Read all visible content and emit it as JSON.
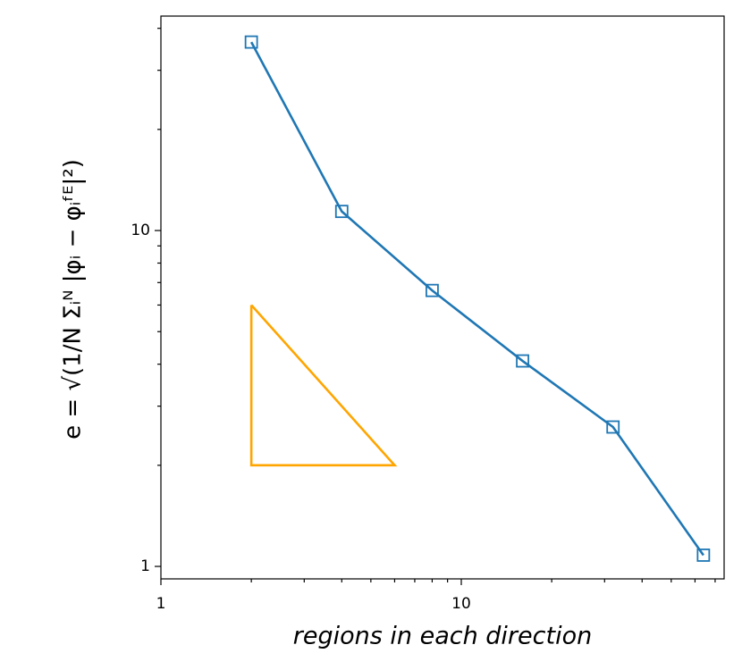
{
  "chart_data": {
    "type": "line",
    "log_x": true,
    "log_y": true,
    "xlabel": "regions in each direction",
    "ylabel": "e = √(1/N Σᵢᴺ |φᵢ − φᵢᶠᴱ|²)",
    "xlim": [
      1,
      75
    ],
    "ylim": [
      0.918,
      43.5
    ],
    "xticks": [
      1,
      10
    ],
    "yticks": [
      1,
      10
    ],
    "xminorticks": [
      2,
      3,
      4,
      5,
      6,
      7,
      8,
      9,
      20,
      30,
      40,
      50,
      60,
      70
    ],
    "yminorticks": [
      2,
      3,
      4,
      5,
      6,
      7,
      8,
      9,
      20,
      30,
      40
    ],
    "series": [
      {
        "color": "#1f77b4",
        "marker": "square",
        "x": [
          2,
          4,
          8,
          16,
          32,
          64
        ],
        "values": [
          36.4,
          11.4,
          6.63,
          4.09,
          2.6,
          1.08
        ]
      },
      {
        "color": "#ffa500",
        "marker": "none",
        "x": [
          2,
          2,
          6,
          2
        ],
        "values": [
          6,
          2,
          2,
          6
        ]
      }
    ]
  }
}
